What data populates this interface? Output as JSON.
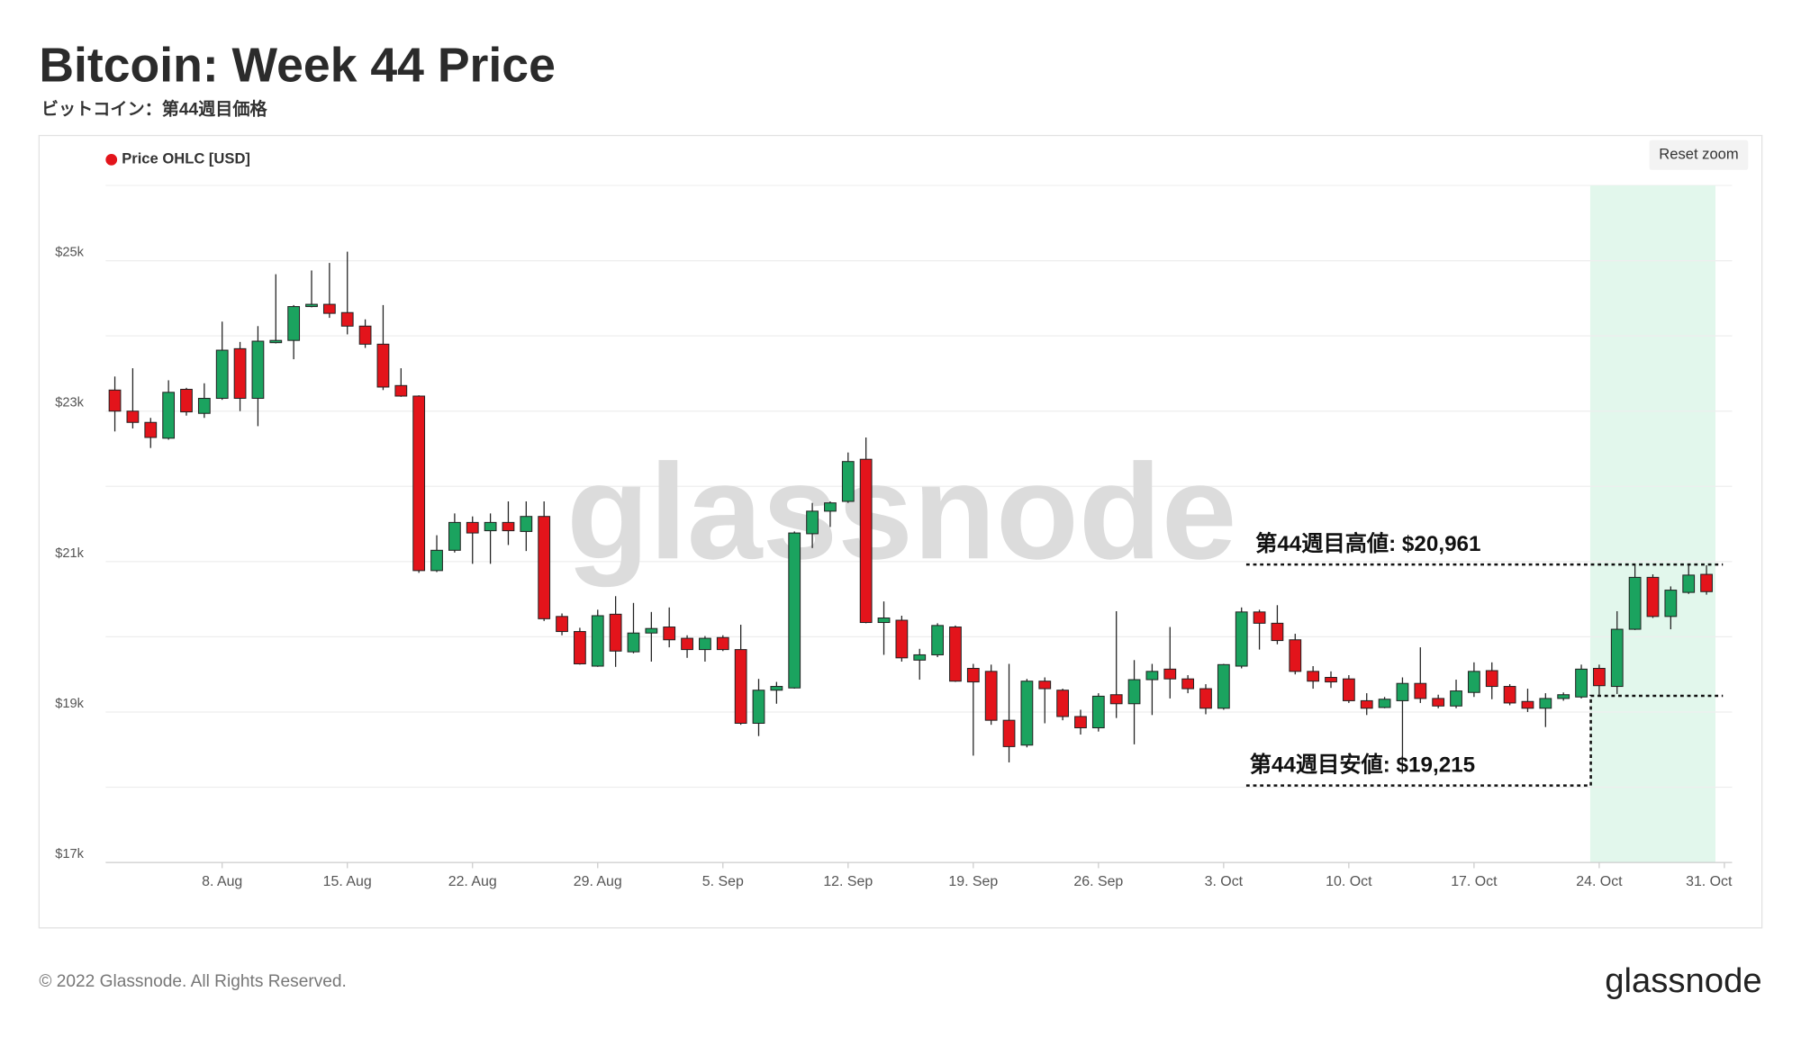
{
  "chart_data": {
    "type": "candlestick",
    "title": "Bitcoin: Week 44 Price",
    "subtitle": "ビットコイン：第44週目価格",
    "legend": "Price OHLC [USD]",
    "legend_color": "#e3141b",
    "button": "Reset zoom",
    "watermark": "glassnode",
    "footer": "© 2022 Glassnode. All Rights Reserved.",
    "logo": "glassnode",
    "up_color": "#1ba35f",
    "down_color": "#e3141b",
    "grid": true,
    "x": [
      "2. Aug",
      "3. Aug",
      "4. Aug",
      "5. Aug",
      "6. Aug",
      "7. Aug",
      "8. Aug",
      "9. Aug",
      "10. Aug",
      "11. Aug",
      "12. Aug",
      "13. Aug",
      "14. Aug",
      "15. Aug",
      "16. Aug",
      "17. Aug",
      "18. Aug",
      "19. Aug",
      "20. Aug",
      "21. Aug",
      "22. Aug",
      "23. Aug",
      "24. Aug",
      "25. Aug",
      "26. Aug",
      "27. Aug",
      "28. Aug",
      "29. Aug",
      "30. Aug",
      "31. Aug",
      "1. Sep",
      "2. Sep",
      "3. Sep",
      "4. Sep",
      "5. Sep",
      "6. Sep",
      "7. Sep",
      "8. Sep",
      "9. Sep",
      "10. Sep",
      "11. Sep",
      "12. Sep",
      "13. Sep",
      "14. Sep",
      "15. Sep",
      "16. Sep",
      "17. Sep",
      "18. Sep",
      "19. Sep",
      "20. Sep",
      "21. Sep",
      "22. Sep",
      "23. Sep",
      "24. Sep",
      "25. Sep",
      "26. Sep",
      "27. Sep",
      "28. Sep",
      "29. Sep",
      "30. Sep",
      "1. Oct",
      "2. Oct",
      "3. Oct",
      "4. Oct",
      "5. Oct",
      "6. Oct",
      "7. Oct",
      "8. Oct",
      "9. Oct",
      "10. Oct",
      "11. Oct",
      "12. Oct",
      "13. Oct",
      "14. Oct",
      "15. Oct",
      "16. Oct",
      "17. Oct",
      "18. Oct",
      "19. Oct",
      "20. Oct",
      "21. Oct",
      "22. Oct",
      "23. Oct",
      "24. Oct",
      "25. Oct",
      "26. Oct",
      "27. Oct",
      "28. Oct",
      "29. Oct",
      "30. Oct",
      "31. Oct"
    ],
    "open": [
      23280,
      23000,
      22850,
      22640,
      23290,
      22970,
      23170,
      23830,
      23170,
      23910,
      23940,
      24390,
      24420,
      24310,
      24130,
      23890,
      23340,
      23200,
      20880,
      21150,
      21520,
      21410,
      21520,
      21400,
      21600,
      20270,
      20070,
      19610,
      20300,
      19800,
      20050,
      20130,
      19980,
      19830,
      19990,
      19830,
      18850,
      19290,
      19320,
      21370,
      21670,
      21800,
      22360,
      20190,
      20220,
      19690,
      19760,
      20130,
      19580,
      19540,
      18890,
      18560,
      19410,
      19290,
      18940,
      18790,
      19230,
      19110,
      19430,
      19570,
      19440,
      19310,
      19050,
      19610,
      20330,
      20180,
      19960,
      19540,
      19460,
      19440,
      19150,
      19060,
      19150,
      19380,
      19180,
      19080,
      19260,
      19550,
      19340,
      19140,
      19050,
      19180,
      19200,
      19580,
      19340,
      20100,
      20790,
      20270,
      20590,
      20830,
      null
    ],
    "high": [
      23460,
      23570,
      22910,
      23410,
      23310,
      23370,
      24190,
      23920,
      24130,
      24820,
      24410,
      24870,
      24970,
      25120,
      24220,
      24410,
      23570,
      23210,
      21350,
      21640,
      21600,
      21640,
      21800,
      21800,
      21800,
      20310,
      20120,
      20360,
      20540,
      20450,
      20330,
      20390,
      20020,
      20010,
      20020,
      20160,
      19440,
      19400,
      21400,
      21780,
      21800,
      22450,
      22650,
      20470,
      20280,
      19840,
      20180,
      20150,
      19640,
      19630,
      19640,
      19440,
      19460,
      19310,
      19030,
      19250,
      20340,
      19690,
      19640,
      20130,
      19490,
      19370,
      19640,
      20390,
      20360,
      20420,
      20040,
      19610,
      19540,
      19490,
      19250,
      19200,
      19460,
      19860,
      19230,
      19430,
      19660,
      19660,
      19370,
      19310,
      19250,
      19260,
      19630,
      19630,
      20340,
      20960,
      20830,
      20670,
      20961,
      20950,
      null
    ],
    "low": [
      22730,
      22770,
      22510,
      22620,
      22940,
      22910,
      23150,
      23000,
      22800,
      23900,
      23690,
      24380,
      24240,
      24020,
      23840,
      23280,
      23190,
      20850,
      20860,
      21120,
      20970,
      20970,
      21220,
      21140,
      20210,
      20020,
      19630,
      19600,
      19600,
      19780,
      19670,
      19860,
      19720,
      19670,
      19810,
      18830,
      18680,
      19110,
      19310,
      21180,
      21460,
      21780,
      20180,
      19760,
      19670,
      19430,
      19730,
      19400,
      18420,
      18830,
      18330,
      18530,
      18850,
      18890,
      18700,
      18740,
      18920,
      18570,
      18960,
      19180,
      19250,
      18970,
      19030,
      19580,
      19830,
      19900,
      19500,
      19310,
      19320,
      19120,
      18960,
      19050,
      18360,
      19120,
      19050,
      19050,
      19200,
      19170,
      19090,
      19000,
      18800,
      19150,
      19180,
      19215,
      19240,
      20090,
      20250,
      20100,
      20570,
      20560,
      null
    ],
    "close": [
      23000,
      22850,
      22650,
      23250,
      22990,
      23170,
      23810,
      23170,
      23930,
      23940,
      24390,
      24420,
      24300,
      24130,
      23890,
      23320,
      23200,
      20880,
      21150,
      21520,
      21380,
      21520,
      21410,
      21600,
      20240,
      20070,
      19640,
      20280,
      19810,
      20050,
      20110,
      19960,
      19830,
      19980,
      19830,
      18850,
      19290,
      19340,
      21380,
      21670,
      21780,
      22330,
      20190,
      20250,
      19720,
      19760,
      20150,
      19410,
      19400,
      18890,
      18540,
      19410,
      19310,
      18940,
      18790,
      19210,
      19110,
      19430,
      19540,
      19440,
      19310,
      19050,
      19630,
      20330,
      20180,
      19950,
      19540,
      19410,
      19400,
      19150,
      19050,
      19170,
      19380,
      19180,
      19080,
      19280,
      19540,
      19340,
      19120,
      19050,
      19180,
      19230,
      19570,
      19350,
      20100,
      20790,
      20270,
      20620,
      20820,
      20600,
      null
    ],
    "ylim": [
      17000,
      26000
    ],
    "yticks": [
      {
        "value": 17000,
        "label": "$17k"
      },
      {
        "value": 19000,
        "label": "$19k"
      },
      {
        "value": 21000,
        "label": "$21k"
      },
      {
        "value": 23000,
        "label": "$23k"
      },
      {
        "value": 25000,
        "label": "$25k"
      }
    ],
    "minor_grid": [
      18000,
      20000,
      22000,
      24000
    ],
    "xticks": [
      "8. Aug",
      "15. Aug",
      "22. Aug",
      "29. Aug",
      "5. Sep",
      "12. Sep",
      "19. Sep",
      "26. Sep",
      "3. Oct",
      "10. Oct",
      "17. Oct",
      "24. Oct",
      "31. Oct"
    ],
    "highlight": {
      "from": "24. Oct",
      "to": "30. Oct",
      "color": "#e2f7ec"
    },
    "annotations": [
      {
        "label": "第44週目高値: $20,961",
        "value": 20961
      },
      {
        "label": "第44週目安値: $19,215",
        "value": 19215
      }
    ]
  }
}
